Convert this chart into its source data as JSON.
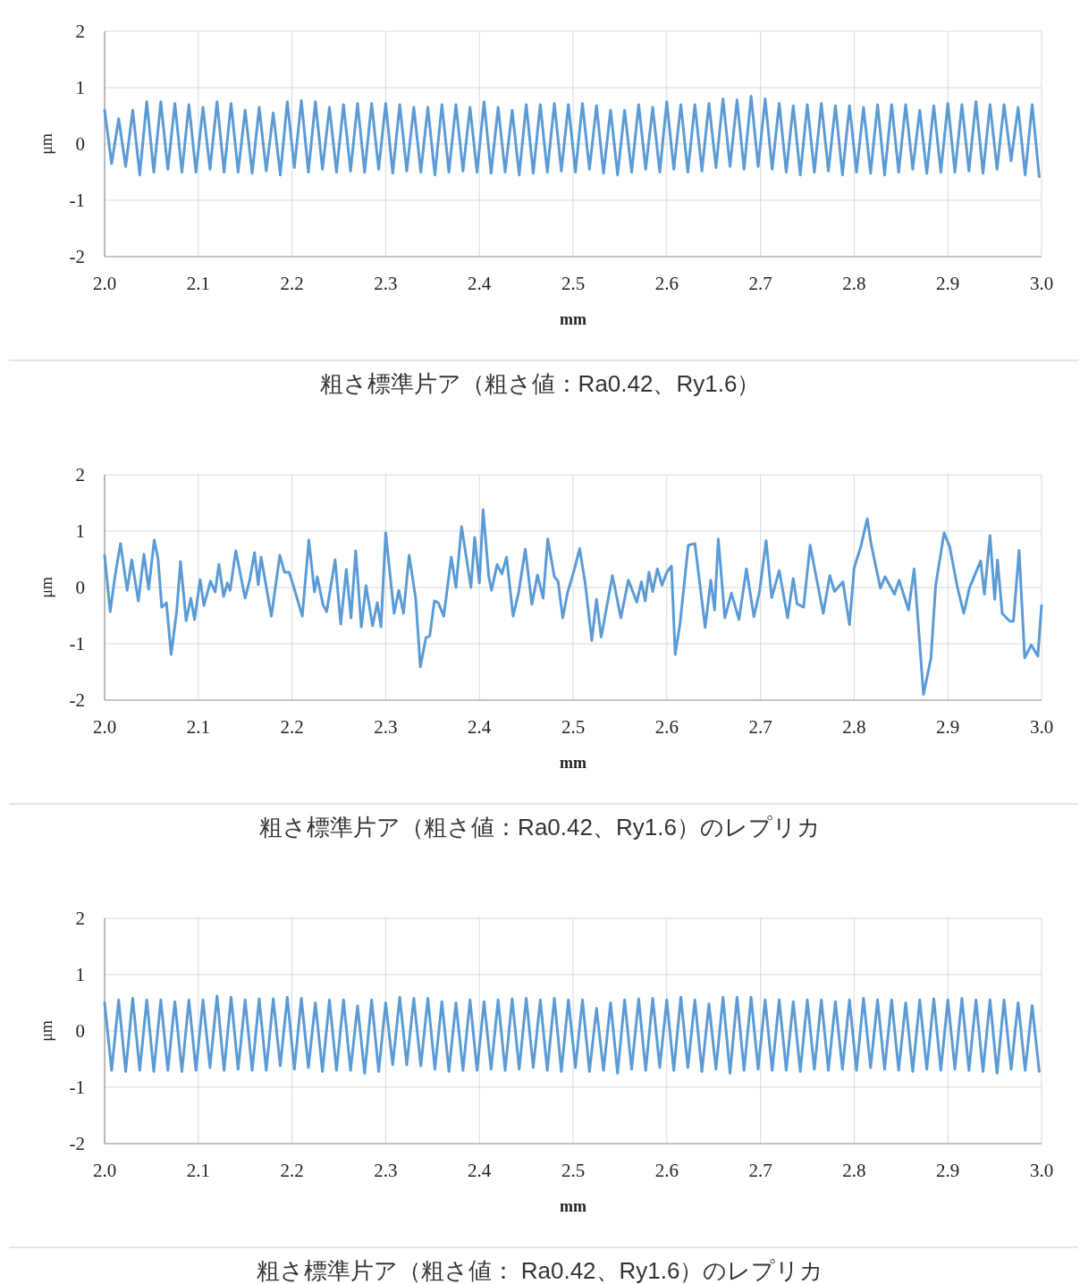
{
  "chart_data": [
    {
      "type": "line",
      "xlabel": "mm",
      "ylabel": "μm",
      "grid": true,
      "xlim": [
        2,
        3
      ],
      "ylim": [
        -2,
        2
      ],
      "yticks": [
        -2,
        -1,
        0,
        1,
        2
      ],
      "xticks": [
        {
          "value": 2,
          "label": "2.0"
        },
        {
          "value": 2.1,
          "label": "2.1"
        },
        {
          "value": 2.2,
          "label": "2.2"
        },
        {
          "value": 2.3,
          "label": "2.3"
        },
        {
          "value": 2.4,
          "label": "2.4"
        },
        {
          "value": 2.5,
          "label": "2.5"
        },
        {
          "value": 2.6,
          "label": "2.6"
        },
        {
          "value": 2.7,
          "label": "2.7"
        },
        {
          "value": 2.8,
          "label": "2.8"
        },
        {
          "value": 2.9,
          "label": "2.9"
        },
        {
          "value": 3,
          "label": "3.0"
        }
      ],
      "annotations": [
        "粗さ標準片ア（粗さ値：Ra0.42、Ry1.6）"
      ],
      "x": [
        2,
        2.0075,
        2.015,
        2.0225,
        2.03,
        2.0375,
        2.045,
        2.0525,
        2.06,
        2.0675,
        2.075,
        2.0825,
        2.09,
        2.0975,
        2.105,
        2.1125,
        2.12,
        2.1275,
        2.135,
        2.1425,
        2.15,
        2.1575,
        2.165,
        2.1725,
        2.18,
        2.1875,
        2.195,
        2.2025,
        2.21,
        2.2175,
        2.225,
        2.2325,
        2.24,
        2.2475,
        2.255,
        2.2625,
        2.27,
        2.2775,
        2.285,
        2.2925,
        2.3,
        2.3075,
        2.315,
        2.3225,
        2.33,
        2.3375,
        2.345,
        2.3525,
        2.36,
        2.3675,
        2.375,
        2.3825,
        2.39,
        2.3975,
        2.405,
        2.4125,
        2.42,
        2.4275,
        2.435,
        2.4425,
        2.45,
        2.4575,
        2.465,
        2.4725,
        2.48,
        2.4875,
        2.495,
        2.5025,
        2.51,
        2.5175,
        2.525,
        2.5325,
        2.54,
        2.5475,
        2.555,
        2.5625,
        2.57,
        2.5775,
        2.585,
        2.5925,
        2.6,
        2.6075,
        2.615,
        2.6225,
        2.63,
        2.6375,
        2.645,
        2.6525,
        2.66,
        2.6675,
        2.675,
        2.6825,
        2.69,
        2.6975,
        2.705,
        2.7125,
        2.72,
        2.7275,
        2.735,
        2.7425,
        2.75,
        2.7575,
        2.765,
        2.7725,
        2.78,
        2.7875,
        2.795,
        2.8025,
        2.81,
        2.8175,
        2.825,
        2.8325,
        2.84,
        2.8475,
        2.855,
        2.8625,
        2.87,
        2.8775,
        2.885,
        2.8925,
        2.9,
        2.9075,
        2.915,
        2.9225,
        2.93,
        2.9375,
        2.945,
        2.9525,
        2.96,
        2.9675,
        2.975,
        2.9825,
        2.99,
        2.9975
      ],
      "series": [
        {
          "color": "#5b9bd5",
          "values": [
            0.6,
            -0.35,
            0.45,
            -0.4,
            0.6,
            -0.55,
            0.75,
            -0.5,
            0.75,
            -0.45,
            0.72,
            -0.5,
            0.7,
            -0.5,
            0.65,
            -0.45,
            0.75,
            -0.5,
            0.72,
            -0.5,
            0.6,
            -0.52,
            0.65,
            -0.48,
            0.55,
            -0.55,
            0.75,
            -0.42,
            0.77,
            -0.5,
            0.75,
            -0.45,
            0.65,
            -0.5,
            0.7,
            -0.48,
            0.72,
            -0.5,
            0.72,
            -0.45,
            0.72,
            -0.52,
            0.7,
            -0.48,
            0.65,
            -0.5,
            0.65,
            -0.55,
            0.7,
            -0.5,
            0.7,
            -0.48,
            0.65,
            -0.5,
            0.75,
            -0.52,
            0.65,
            -0.5,
            0.6,
            -0.55,
            0.7,
            -0.52,
            0.7,
            -0.5,
            0.72,
            -0.48,
            0.7,
            -0.5,
            0.72,
            -0.45,
            0.68,
            -0.52,
            0.6,
            -0.55,
            0.6,
            -0.5,
            0.7,
            -0.45,
            0.65,
            -0.5,
            0.75,
            -0.45,
            0.7,
            -0.5,
            0.7,
            -0.48,
            0.72,
            -0.42,
            0.8,
            -0.4,
            0.78,
            -0.45,
            0.85,
            -0.4,
            0.8,
            -0.45,
            0.72,
            -0.5,
            0.68,
            -0.55,
            0.7,
            -0.5,
            0.72,
            -0.48,
            0.68,
            -0.55,
            0.68,
            -0.5,
            0.65,
            -0.52,
            0.7,
            -0.55,
            0.7,
            -0.5,
            0.7,
            -0.45,
            0.6,
            -0.52,
            0.68,
            -0.5,
            0.72,
            -0.5,
            0.7,
            -0.48,
            0.75,
            -0.52,
            0.7,
            -0.45,
            0.7,
            -0.3,
            0.65,
            -0.55,
            0.7,
            -0.58
          ]
        }
      ]
    },
    {
      "type": "line",
      "xlabel": "mm",
      "ylabel": "μm",
      "grid": true,
      "xlim": [
        2,
        3
      ],
      "ylim": [
        -2,
        2
      ],
      "yticks": [
        -2,
        -1,
        0,
        1,
        2
      ],
      "xticks": [
        {
          "value": 2,
          "label": "2.0"
        },
        {
          "value": 2.1,
          "label": "2.1"
        },
        {
          "value": 2.2,
          "label": "2.2"
        },
        {
          "value": 2.3,
          "label": "2.3"
        },
        {
          "value": 2.4,
          "label": "2.4"
        },
        {
          "value": 2.5,
          "label": "2.5"
        },
        {
          "value": 2.6,
          "label": "2.6"
        },
        {
          "value": 2.7,
          "label": "2.7"
        },
        {
          "value": 2.8,
          "label": "2.8"
        },
        {
          "value": 2.9,
          "label": "2.9"
        },
        {
          "value": 3,
          "label": "3.0"
        }
      ],
      "annotations": [
        "粗さ標準片ア（粗さ値：Ra0.42、Ry1.6）のレプリカ"
      ],
      "x": [
        2.0,
        2.006,
        2.011,
        2.017,
        2.024,
        2.029,
        2.036,
        2.042,
        2.047,
        2.053,
        2.057,
        2.061,
        2.066,
        2.071,
        2.077,
        2.081,
        2.087,
        2.092,
        2.096,
        2.102,
        2.106,
        2.113,
        2.118,
        2.122,
        2.127,
        2.131,
        2.134,
        2.14,
        2.15,
        2.155,
        2.16,
        2.164,
        2.167,
        2.178,
        2.187,
        2.192,
        2.197,
        2.202,
        2.211,
        2.218,
        2.224,
        2.227,
        2.233,
        2.237,
        2.246,
        2.252,
        2.258,
        2.263,
        2.268,
        2.274,
        2.279,
        2.286,
        2.291,
        2.295,
        2.3,
        2.309,
        2.314,
        2.319,
        2.325,
        2.332,
        2.337,
        2.343,
        2.347,
        2.352,
        2.356,
        2.362,
        2.37,
        2.375,
        2.381,
        2.386,
        2.391,
        2.395,
        2.4,
        2.404,
        2.41,
        2.413,
        2.419,
        2.424,
        2.429,
        2.436,
        2.442,
        2.449,
        2.456,
        2.462,
        2.468,
        2.473,
        2.48,
        2.484,
        2.489,
        2.494,
        2.501,
        2.507,
        2.513,
        2.52,
        2.525,
        2.53,
        2.542,
        2.551,
        2.559,
        2.568,
        2.573,
        2.577,
        2.581,
        2.585,
        2.59,
        2.595,
        2.6,
        2.605,
        2.609,
        2.614,
        2.623,
        2.63,
        2.641,
        2.647,
        2.651,
        2.655,
        2.662,
        2.669,
        2.677,
        2.685,
        2.693,
        2.699,
        2.706,
        2.712,
        2.72,
        2.729,
        2.735,
        2.739,
        2.746,
        2.753,
        2.767,
        2.774,
        2.779,
        2.788,
        2.795,
        2.8,
        2.807,
        2.814,
        2.818,
        2.828,
        2.833,
        2.843,
        2.848,
        2.858,
        2.864,
        2.874,
        2.882,
        2.887,
        2.896,
        2.902,
        2.91,
        2.917,
        2.923,
        2.935,
        2.939,
        2.945,
        2.95,
        2.953,
        2.958,
        2.966,
        2.97,
        2.976,
        2.982,
        2.989,
        2.996,
        3.0
      ],
      "series": [
        {
          "color": "#5b9bd5",
          "values": [
            0.57,
            -0.43,
            0.19,
            0.78,
            -0.05,
            0.49,
            -0.24,
            0.59,
            -0.03,
            0.84,
            0.51,
            -0.35,
            -0.27,
            -1.19,
            -0.41,
            0.46,
            -0.59,
            -0.19,
            -0.57,
            0.14,
            -0.32,
            0.11,
            -0.08,
            0.41,
            -0.16,
            0.08,
            -0.05,
            0.65,
            -0.19,
            0.14,
            0.62,
            0.05,
            0.54,
            -0.51,
            0.57,
            0.27,
            0.27,
            0.0,
            -0.51,
            0.84,
            -0.08,
            0.19,
            -0.3,
            -0.43,
            0.49,
            -0.65,
            0.32,
            -0.54,
            0.65,
            -0.7,
            0.03,
            -0.68,
            -0.27,
            -0.7,
            0.97,
            -0.46,
            -0.05,
            -0.46,
            0.57,
            -0.19,
            -1.41,
            -0.89,
            -0.86,
            -0.24,
            -0.27,
            -0.51,
            0.54,
            0.0,
            1.08,
            0.54,
            0.0,
            0.89,
            0.08,
            1.38,
            0.19,
            -0.05,
            0.41,
            0.24,
            0.54,
            -0.51,
            -0.08,
            0.68,
            -0.3,
            0.22,
            -0.19,
            0.86,
            0.19,
            0.11,
            -0.54,
            -0.1,
            0.3,
            0.69,
            0.07,
            -0.94,
            -0.21,
            -0.88,
            0.21,
            -0.54,
            0.13,
            -0.26,
            0.1,
            -0.24,
            0.27,
            -0.07,
            0.33,
            0.04,
            0.27,
            0.38,
            -1.19,
            -0.66,
            0.75,
            0.78,
            -0.71,
            0.13,
            -0.4,
            0.86,
            -0.54,
            -0.1,
            -0.57,
            0.33,
            -0.52,
            -0.07,
            0.83,
            -0.18,
            0.3,
            -0.54,
            0.16,
            -0.29,
            -0.35,
            0.75,
            -0.46,
            0.21,
            -0.07,
            0.1,
            -0.66,
            0.35,
            0.72,
            1.22,
            0.78,
            -0.01,
            0.19,
            -0.12,
            0.13,
            -0.4,
            0.33,
            -1.9,
            -1.25,
            0.04,
            0.97,
            0.72,
            0.02,
            -0.46,
            -0.01,
            0.47,
            -0.12,
            0.92,
            -0.21,
            0.49,
            -0.46,
            -0.6,
            -0.6,
            0.66,
            -1.25,
            -1.02,
            -1.22,
            -0.32
          ]
        }
      ]
    },
    {
      "type": "line",
      "xlabel": "mm",
      "ylabel": "μm",
      "grid": true,
      "xlim": [
        2,
        3
      ],
      "ylim": [
        -2,
        2
      ],
      "yticks": [
        -2,
        -1,
        0,
        1,
        2
      ],
      "xticks": [
        {
          "value": 2,
          "label": "2.0"
        },
        {
          "value": 2.1,
          "label": "2.1"
        },
        {
          "value": 2.2,
          "label": "2.2"
        },
        {
          "value": 2.3,
          "label": "2.3"
        },
        {
          "value": 2.4,
          "label": "2.4"
        },
        {
          "value": 2.5,
          "label": "2.5"
        },
        {
          "value": 2.6,
          "label": "2.6"
        },
        {
          "value": 2.7,
          "label": "2.7"
        },
        {
          "value": 2.8,
          "label": "2.8"
        },
        {
          "value": 2.9,
          "label": "2.9"
        },
        {
          "value": 3,
          "label": "3.0"
        }
      ],
      "annotations": [
        "粗さ標準片ア（粗さ値： Ra0.42、Ry1.6）のレプリカ"
      ],
      "x": [
        2,
        2.0075,
        2.015,
        2.0225,
        2.03,
        2.0375,
        2.045,
        2.0525,
        2.06,
        2.0675,
        2.075,
        2.0825,
        2.09,
        2.0975,
        2.105,
        2.1125,
        2.12,
        2.1275,
        2.135,
        2.1425,
        2.15,
        2.1575,
        2.165,
        2.1725,
        2.18,
        2.1875,
        2.195,
        2.2025,
        2.21,
        2.2175,
        2.225,
        2.2325,
        2.24,
        2.2475,
        2.255,
        2.2625,
        2.27,
        2.2775,
        2.285,
        2.2925,
        2.3,
        2.3075,
        2.315,
        2.3225,
        2.33,
        2.3375,
        2.345,
        2.3525,
        2.36,
        2.3675,
        2.375,
        2.3825,
        2.39,
        2.3975,
        2.405,
        2.4125,
        2.42,
        2.4275,
        2.435,
        2.4425,
        2.45,
        2.4575,
        2.465,
        2.4725,
        2.48,
        2.4875,
        2.495,
        2.5025,
        2.51,
        2.5175,
        2.525,
        2.5325,
        2.54,
        2.5475,
        2.555,
        2.5625,
        2.57,
        2.5775,
        2.585,
        2.5925,
        2.6,
        2.6075,
        2.615,
        2.6225,
        2.63,
        2.6375,
        2.645,
        2.6525,
        2.66,
        2.6675,
        2.675,
        2.6825,
        2.69,
        2.6975,
        2.705,
        2.7125,
        2.72,
        2.7275,
        2.735,
        2.7425,
        2.75,
        2.7575,
        2.765,
        2.7725,
        2.78,
        2.7875,
        2.795,
        2.8025,
        2.81,
        2.8175,
        2.825,
        2.8325,
        2.84,
        2.8475,
        2.855,
        2.8625,
        2.87,
        2.8775,
        2.885,
        2.8925,
        2.9,
        2.9075,
        2.915,
        2.9225,
        2.93,
        2.9375,
        2.945,
        2.9525,
        2.96,
        2.9675,
        2.975,
        2.9825,
        2.99,
        2.9975
      ],
      "series": [
        {
          "color": "#5b9bd5",
          "values": [
            0.5,
            -0.7,
            0.55,
            -0.72,
            0.58,
            -0.7,
            0.55,
            -0.72,
            0.55,
            -0.7,
            0.52,
            -0.72,
            0.55,
            -0.7,
            0.55,
            -0.65,
            0.62,
            -0.7,
            0.6,
            -0.68,
            0.55,
            -0.7,
            0.57,
            -0.7,
            0.57,
            -0.62,
            0.6,
            -0.68,
            0.58,
            -0.65,
            0.5,
            -0.72,
            0.55,
            -0.7,
            0.55,
            -0.7,
            0.45,
            -0.75,
            0.55,
            -0.72,
            0.5,
            -0.6,
            0.6,
            -0.6,
            0.58,
            -0.62,
            0.58,
            -0.68,
            0.52,
            -0.72,
            0.5,
            -0.7,
            0.55,
            -0.7,
            0.52,
            -0.68,
            0.55,
            -0.7,
            0.57,
            -0.68,
            0.58,
            -0.65,
            0.55,
            -0.7,
            0.58,
            -0.72,
            0.55,
            -0.65,
            0.55,
            -0.72,
            0.4,
            -0.7,
            0.5,
            -0.75,
            0.55,
            -0.68,
            0.57,
            -0.7,
            0.58,
            -0.65,
            0.55,
            -0.7,
            0.6,
            -0.65,
            0.55,
            -0.72,
            0.48,
            -0.68,
            0.6,
            -0.75,
            0.6,
            -0.7,
            0.6,
            -0.68,
            0.55,
            -0.7,
            0.55,
            -0.7,
            0.52,
            -0.72,
            0.55,
            -0.68,
            0.55,
            -0.7,
            0.52,
            -0.68,
            0.55,
            -0.7,
            0.58,
            -0.65,
            0.55,
            -0.68,
            0.55,
            -0.7,
            0.5,
            -0.72,
            0.55,
            -0.68,
            0.57,
            -0.7,
            0.55,
            -0.68,
            0.58,
            -0.7,
            0.55,
            -0.72,
            0.55,
            -0.75,
            0.55,
            -0.68,
            0.5,
            -0.7,
            0.45,
            -0.72
          ]
        }
      ]
    }
  ]
}
